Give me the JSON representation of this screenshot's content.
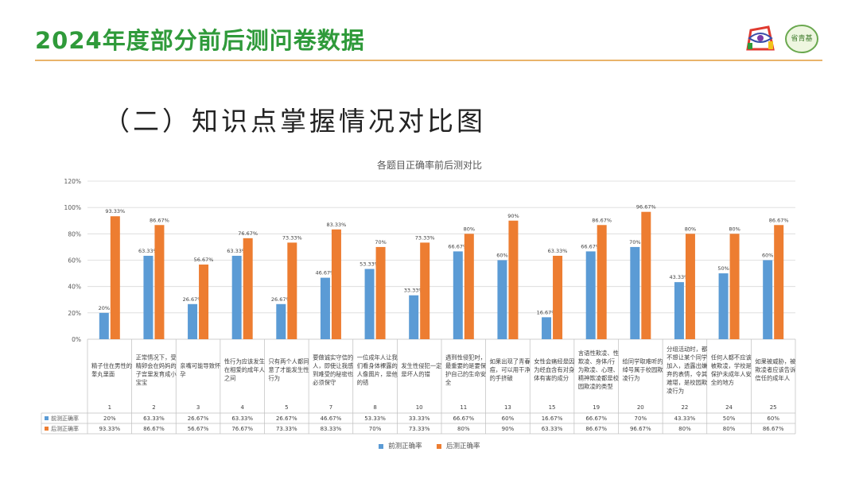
{
  "header": {
    "title": "2024年度部分前后测问卷数据"
  },
  "section_title": "（二）知识点掌握情况对比图",
  "colors": {
    "pre": "#5b9bd5",
    "post": "#ed7d31",
    "title_green": "#2f9a3a",
    "rule": "#e9b46a"
  },
  "logos": {
    "left_icon": "eye-logo-icon",
    "right_icon": "green-badge-logo-icon",
    "right_text": "省青基"
  },
  "chart_data": {
    "type": "bar",
    "title": "各题目正确率前后测对比",
    "ylim": [
      0,
      120
    ],
    "yticks": [
      "0%",
      "20%",
      "40%",
      "60%",
      "80%",
      "100%",
      "120%"
    ],
    "grid": true,
    "legend": "bottom",
    "categories": [
      "1",
      "2",
      "3",
      "4",
      "5",
      "7",
      "8",
      "10",
      "11",
      "13",
      "15",
      "19",
      "20",
      "22",
      "24",
      "25"
    ],
    "category_texts": [
      "精子住在男性的睾丸里面",
      "正常情况下，受精卵会在妈妈的子宫里发育成小宝宝",
      "亲嘴可能导致怀孕",
      "性行为应该发生在相爱的成年人之间",
      "只有两个人都同意了才能发生性行为",
      "要做诚实守信的人，即使让我感到难受的秘密也必须保守",
      "一位成年人让我们看身体裸露的人像图片，是他的错",
      "发生性侵犯一定是坏人的错",
      "遇到性侵犯时，最重要的是要保护自己的生命安全",
      "如果出现了青春痘，可以用干净的手挤破",
      "女性会痛经是因为经血含有对身体有害的成分",
      "言语性欺凌、性欺凌、身体/行为欺凌、心理、精神欺凌都是校园欺凌的类型",
      "给同学取难听的绰号属于校园欺凌行为",
      "分组活动时，都不想让某个同学加入，透露出嫌弃的表情，令其难堪，是校园欺凌行为",
      "任何人都不应该被欺凌，学校是保护未成年人安全的地方",
      "如果被威胁，被欺凌者应该告诉信任的成年人"
    ],
    "series": [
      {
        "name": "前测正确率",
        "values": [
          20,
          63.33,
          26.67,
          63.33,
          26.67,
          46.67,
          53.33,
          33.33,
          66.67,
          60,
          16.67,
          66.67,
          70,
          43.33,
          50,
          60
        ],
        "labels": [
          "20%",
          "63.33%",
          "26.67%",
          "63.33%",
          "26.67%",
          "46.67%",
          "53.33%",
          "33.33%",
          "66.67%",
          "60%",
          "16.67%",
          "66.67%",
          "70%",
          "43.33%",
          "50%",
          "60%"
        ]
      },
      {
        "name": "后测正确率",
        "values": [
          93.33,
          86.67,
          56.67,
          76.67,
          73.33,
          83.33,
          70,
          73.33,
          80,
          90,
          63.33,
          86.67,
          96.67,
          80,
          80,
          86.67
        ],
        "labels": [
          "93.33%",
          "86.67%",
          "56.67%",
          "76.67%",
          "73.33%",
          "83.33%",
          "70%",
          "73.33%",
          "80%",
          "90%",
          "63.33%",
          "86.67%",
          "96.67%",
          "80%",
          "80%",
          "86.67%"
        ]
      }
    ]
  }
}
